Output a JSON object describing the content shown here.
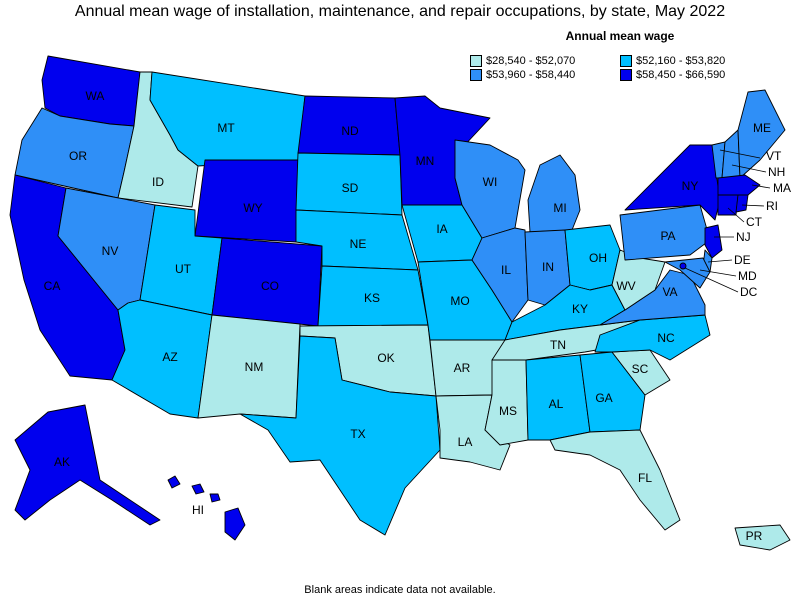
{
  "title": "Annual mean wage of installation, maintenance, and repair occupations, by state, May 2022",
  "footnote": "Blank areas indicate data not available.",
  "legend": {
    "title": "Annual mean wage",
    "bins": [
      {
        "label": "$28,540 - $52,070",
        "color": "#aeeaea"
      },
      {
        "label": "$53,960 - $58,440",
        "color": "#2f8ff7"
      },
      {
        "label": "$52,160 - $53,820",
        "color": "#00bfff"
      },
      {
        "label": "$58,450 - $66,590",
        "color": "#0000ee"
      }
    ]
  },
  "states": [
    {
      "abbr": "WA",
      "bin": 3
    },
    {
      "abbr": "OR",
      "bin": 1
    },
    {
      "abbr": "CA",
      "bin": 3
    },
    {
      "abbr": "ID",
      "bin": 0
    },
    {
      "abbr": "NV",
      "bin": 1
    },
    {
      "abbr": "MT",
      "bin": 2
    },
    {
      "abbr": "WY",
      "bin": 3
    },
    {
      "abbr": "UT",
      "bin": 2
    },
    {
      "abbr": "AZ",
      "bin": 2
    },
    {
      "abbr": "CO",
      "bin": 3
    },
    {
      "abbr": "NM",
      "bin": 0
    },
    {
      "abbr": "ND",
      "bin": 3
    },
    {
      "abbr": "SD",
      "bin": 2
    },
    {
      "abbr": "NE",
      "bin": 2
    },
    {
      "abbr": "KS",
      "bin": 2
    },
    {
      "abbr": "OK",
      "bin": 0
    },
    {
      "abbr": "TX",
      "bin": 2
    },
    {
      "abbr": "MN",
      "bin": 3
    },
    {
      "abbr": "IA",
      "bin": 2
    },
    {
      "abbr": "MO",
      "bin": 2
    },
    {
      "abbr": "AR",
      "bin": 0
    },
    {
      "abbr": "LA",
      "bin": 0
    },
    {
      "abbr": "WI",
      "bin": 1
    },
    {
      "abbr": "IL",
      "bin": 1
    },
    {
      "abbr": "MS",
      "bin": 0
    },
    {
      "abbr": "MI",
      "bin": 1
    },
    {
      "abbr": "IN",
      "bin": 1
    },
    {
      "abbr": "OH",
      "bin": 2
    },
    {
      "abbr": "KY",
      "bin": 2
    },
    {
      "abbr": "TN",
      "bin": 0
    },
    {
      "abbr": "AL",
      "bin": 2
    },
    {
      "abbr": "GA",
      "bin": 2
    },
    {
      "abbr": "FL",
      "bin": 0
    },
    {
      "abbr": "SC",
      "bin": 0
    },
    {
      "abbr": "NC",
      "bin": 2
    },
    {
      "abbr": "VA",
      "bin": 1
    },
    {
      "abbr": "WV",
      "bin": 0
    },
    {
      "abbr": "PA",
      "bin": 1
    },
    {
      "abbr": "NY",
      "bin": 3
    },
    {
      "abbr": "VT",
      "bin": 1
    },
    {
      "abbr": "NH",
      "bin": 1
    },
    {
      "abbr": "ME",
      "bin": 1
    },
    {
      "abbr": "MA",
      "bin": 3
    },
    {
      "abbr": "RI",
      "bin": 3
    },
    {
      "abbr": "CT",
      "bin": 3
    },
    {
      "abbr": "NJ",
      "bin": 3
    },
    {
      "abbr": "DE",
      "bin": 1
    },
    {
      "abbr": "MD",
      "bin": 1
    },
    {
      "abbr": "DC",
      "bin": 3
    },
    {
      "abbr": "AK",
      "bin": 3
    },
    {
      "abbr": "HI",
      "bin": 3
    },
    {
      "abbr": "PR",
      "bin": 0
    }
  ]
}
